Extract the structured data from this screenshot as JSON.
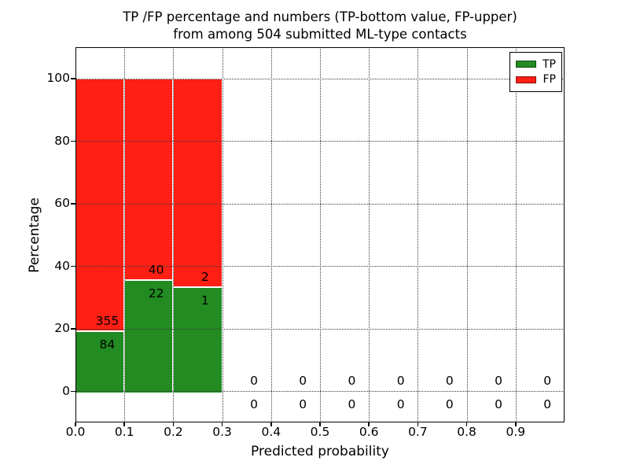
{
  "title": {
    "line1": "TP /FP percentage and numbers (TP-bottom value, FP-upper)",
    "line2": "from among 504 submitted ML-type contacts"
  },
  "chart_data": {
    "type": "bar",
    "stacked": true,
    "title": "TP /FP percentage and numbers (TP-bottom value, FP-upper) from among 504 submitted ML-type contacts",
    "xlabel": "Predicted probability",
    "ylabel": "Percentage",
    "xlim": [
      0.0,
      1.0
    ],
    "ylim": [
      -10,
      110
    ],
    "xtick_values": [
      0.0,
      0.1,
      0.2,
      0.3,
      0.4,
      0.5,
      0.6,
      0.7,
      0.8,
      0.9
    ],
    "xtick_labels": [
      "0.0",
      "0.1",
      "0.2",
      "0.3",
      "0.4",
      "0.5",
      "0.6",
      "0.7",
      "0.8",
      "0.9"
    ],
    "ytick_values": [
      0,
      20,
      40,
      60,
      80,
      100
    ],
    "ytick_labels": [
      "0",
      "20",
      "40",
      "60",
      "80",
      "100"
    ],
    "grid": {
      "linestyle": "dotted",
      "color": "#3a3a3a"
    },
    "bin_width": 0.1,
    "total_contacts": 504,
    "bins": [
      {
        "x0": 0.0,
        "tp": 84,
        "fp": 355
      },
      {
        "x0": 0.1,
        "tp": 22,
        "fp": 40
      },
      {
        "x0": 0.2,
        "tp": 1,
        "fp": 2
      },
      {
        "x0": 0.3,
        "tp": 0,
        "fp": 0
      },
      {
        "x0": 0.4,
        "tp": 0,
        "fp": 0
      },
      {
        "x0": 0.5,
        "tp": 0,
        "fp": 0
      },
      {
        "x0": 0.6,
        "tp": 0,
        "fp": 0
      },
      {
        "x0": 0.7,
        "tp": 0,
        "fp": 0
      },
      {
        "x0": 0.8,
        "tp": 0,
        "fp": 0
      },
      {
        "x0": 0.9,
        "tp": 0,
        "fp": 0
      }
    ],
    "series": [
      {
        "name": "TP",
        "color": "#228b22",
        "counts": [
          84,
          22,
          1,
          0,
          0,
          0,
          0,
          0,
          0,
          0
        ]
      },
      {
        "name": "FP",
        "color": "#ff1f14",
        "counts": [
          355,
          40,
          2,
          0,
          0,
          0,
          0,
          0,
          0,
          0
        ]
      }
    ],
    "colors": {
      "tp": "#228b22",
      "fp": "#ff1f14",
      "bar_edge": "#ffffff",
      "spine": "#000000",
      "text": "#000000",
      "background": "#ffffff"
    },
    "legend": {
      "position": "upper right",
      "entries": [
        {
          "label": "TP",
          "color": "#228b22"
        },
        {
          "label": "FP",
          "color": "#ff1f14"
        }
      ]
    }
  }
}
